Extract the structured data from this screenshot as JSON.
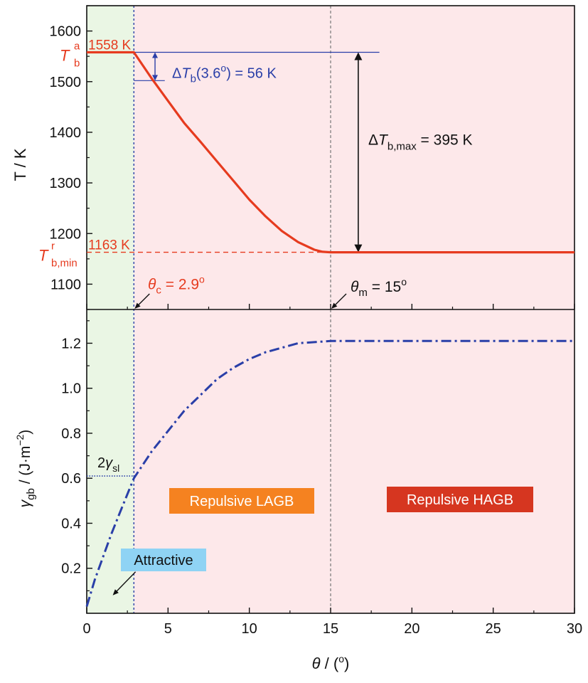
{
  "colors": {
    "red": "#e63b1f",
    "blue": "#2a3fa8",
    "black": "#111111",
    "green_region": "#eaf6e4",
    "pink_region": "#fde8ea",
    "orange_label": "#f58220",
    "dark_red_label": "#d63620",
    "light_blue_label": "#8fd3f4"
  },
  "chart_data": [
    {
      "type": "line",
      "panel": "top",
      "ylabel": "T / K",
      "ylim": [
        1050,
        1650
      ],
      "yticks": [
        1100,
        1200,
        1300,
        1400,
        1500,
        1600
      ],
      "xlim": [
        0,
        30
      ],
      "grid": false,
      "series": [
        {
          "style": "solid",
          "x": [
            0,
            2.9,
            4,
            5,
            6,
            7,
            8,
            9,
            10,
            11,
            12,
            13,
            14,
            14.5,
            15,
            20,
            25,
            30
          ],
          "y": [
            1558,
            1558,
            1506,
            1462,
            1418,
            1381,
            1343,
            1305,
            1267,
            1234,
            1205,
            1183,
            1168,
            1164,
            1163,
            1163,
            1163,
            1163
          ]
        }
      ],
      "annotations": {
        "tb_a_value": "1558 K",
        "tb_min_value": "1163 K",
        "tb_a_symbol": "T",
        "tb_a_sub": "b",
        "tb_a_sup": "a",
        "tb_min_symbol": "T",
        "tb_min_sub": "b,min",
        "tb_min_sup": "r",
        "delta_small_prefix": "Δ",
        "delta_small_symbol": "T",
        "delta_small_sub": "b",
        "delta_small_suffix": "(3.6",
        "delta_small_sup": "o",
        "delta_small_value": ") = 56 K",
        "delta_max_prefix": "Δ",
        "delta_max_symbol": "T",
        "delta_max_sub": "b,max",
        "delta_max_value": " = 395 K",
        "theta_c_symbol": "θ",
        "theta_c_sub": "c",
        "theta_c_value": " = 2.9",
        "theta_c_sup": "o",
        "theta_m_symbol": "θ",
        "theta_m_sub": "m",
        "theta_m_value": " = 15",
        "theta_m_sup": "o"
      }
    },
    {
      "type": "line",
      "panel": "bottom",
      "ylabel_symbol": "γ",
      "ylabel_sub": "gb",
      "ylabel_rest": " / (J·m",
      "ylabel_sup": "−2",
      "ylabel_close": ")",
      "ylim": [
        0,
        1.35
      ],
      "yticks": [
        0.2,
        0.4,
        0.6,
        0.8,
        1.0,
        1.2
      ],
      "ytick_labels": [
        "0.2",
        "0.4",
        "0.6",
        "0.8",
        "1.0",
        "1.2"
      ],
      "xlabel_symbol": "θ",
      "xlabel_rest": " / (",
      "xlabel_sup": "o",
      "xlabel_close": ")",
      "xlim": [
        0,
        30
      ],
      "xticks": [
        0,
        5,
        10,
        15,
        20,
        25,
        30
      ],
      "xtick_labels": [
        "0",
        "5",
        "10",
        "15",
        "20",
        "25",
        "30"
      ],
      "grid": false,
      "series": [
        {
          "style": "dash-dot",
          "x": [
            0,
            0.5,
            1,
            1.5,
            2,
            2.9,
            4,
            5,
            6,
            7,
            8,
            9,
            10,
            11,
            12,
            13,
            14,
            15,
            20,
            25,
            30
          ],
          "y": [
            0.03,
            0.15,
            0.25,
            0.35,
            0.44,
            0.6,
            0.72,
            0.81,
            0.9,
            0.97,
            1.04,
            1.09,
            1.13,
            1.16,
            1.18,
            1.2,
            1.205,
            1.21,
            1.21,
            1.21,
            1.21
          ]
        }
      ],
      "annotations": {
        "two_gamma_prefix": "2",
        "two_gamma_symbol": "γ",
        "two_gamma_sub": "sl",
        "two_gamma_value": 0.61,
        "region_attractive": "Attractive",
        "region_lagb": "Repulsive LAGB",
        "region_hagb": "Repulsive HAGB"
      }
    }
  ],
  "regions": {
    "attractive_end": 2.9,
    "lagb_end": 15
  }
}
